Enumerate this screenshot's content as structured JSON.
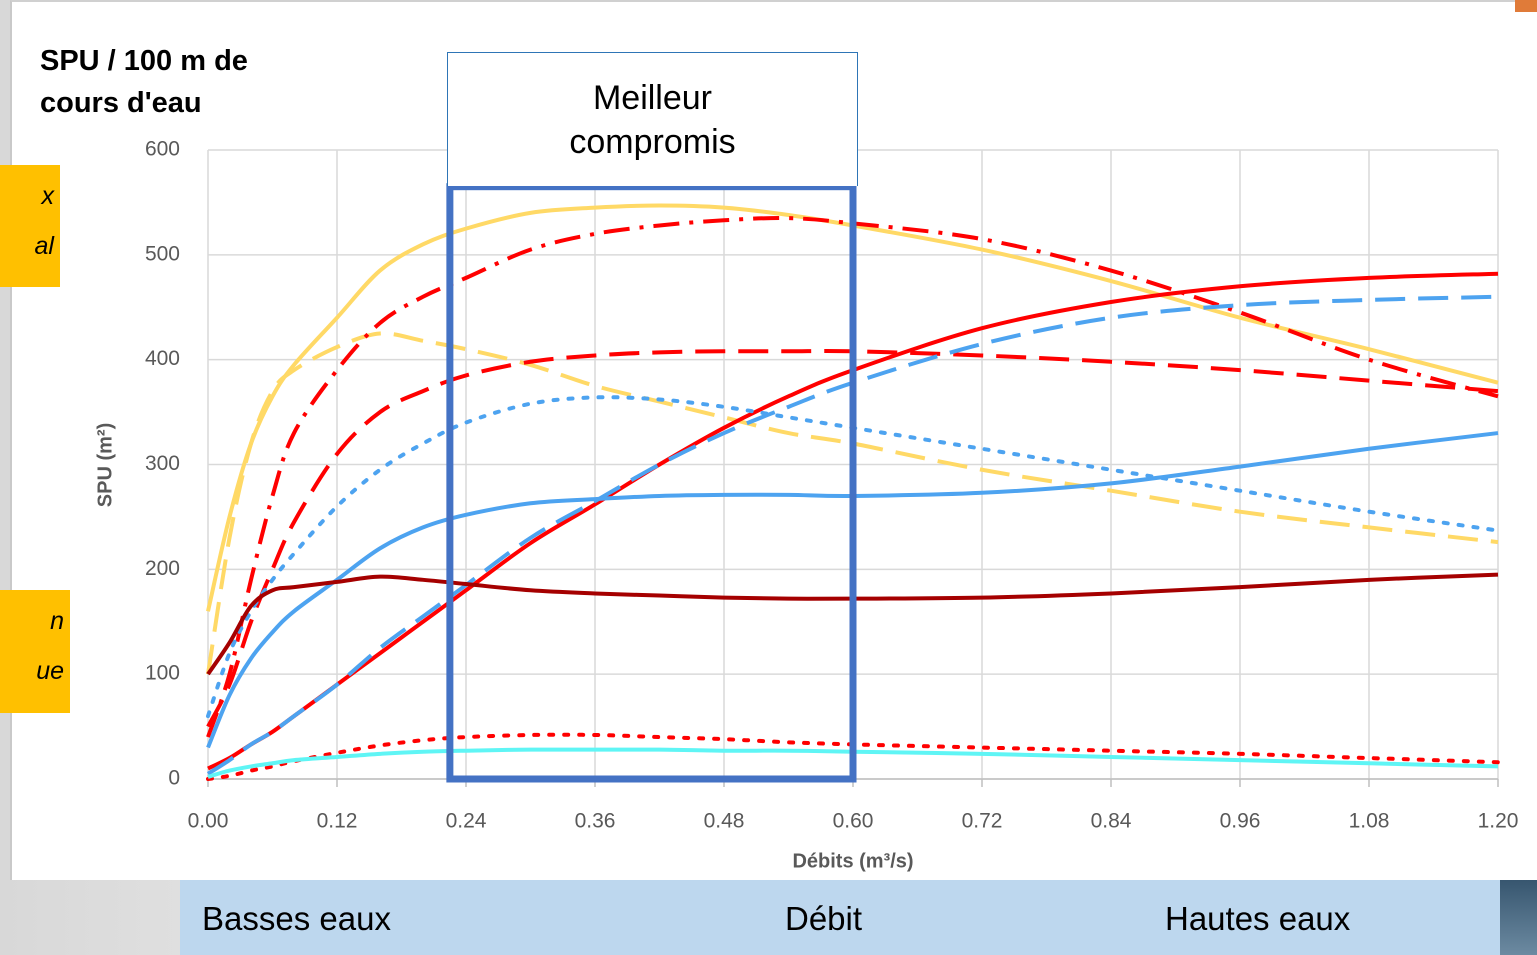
{
  "chart_data": {
    "type": "line",
    "title": "SPU / 100 m de cours d'eau",
    "x_label": "Débits (m³/s)",
    "y_label": "SPU (m²)",
    "x": [
      0,
      0.02,
      0.04,
      0.06,
      0.08,
      0.12,
      0.16,
      0.2,
      0.24,
      0.3,
      0.36,
      0.42,
      0.48,
      0.54,
      0.6,
      0.72,
      0.84,
      0.96,
      1.08,
      1.2
    ],
    "xlim": [
      0,
      1.2
    ],
    "xticks": [
      {
        "value": 0,
        "label": "0.00"
      },
      0.12,
      0.24,
      0.36,
      0.48,
      {
        "value": 0.6,
        "label": "0.60"
      },
      0.72,
      0.84,
      0.96,
      1.08,
      {
        "value": 1.2,
        "label": "1.20"
      }
    ],
    "ylim": [
      0,
      600
    ],
    "yticks": [
      0,
      100,
      200,
      300,
      400,
      500,
      600
    ],
    "grid": true,
    "series": [
      {
        "color": "#ffd966",
        "dash": "solid",
        "values": [
          160,
          250,
          320,
          365,
          395,
          440,
          485,
          510,
          525,
          540,
          545,
          547,
          545,
          538,
          528,
          505,
          475,
          440,
          410,
          378
        ]
      },
      {
        "color": "#ffd966",
        "dash": "dashed",
        "values": [
          100,
          230,
          320,
          370,
          390,
          412,
          425,
          418,
          410,
          395,
          375,
          360,
          345,
          330,
          320,
          295,
          275,
          255,
          240,
          226
        ]
      },
      {
        "color": "#ff0000",
        "dash": "dashdot",
        "values": [
          40,
          100,
          190,
          270,
          330,
          390,
          435,
          460,
          478,
          505,
          520,
          528,
          533,
          535,
          530,
          515,
          485,
          445,
          400,
          365
        ]
      },
      {
        "color": "#ff0000",
        "dash": "dashed",
        "values": [
          50,
          90,
          150,
          200,
          245,
          310,
          350,
          370,
          385,
          398,
          404,
          407,
          408,
          408,
          408,
          404,
          398,
          390,
          380,
          370
        ]
      },
      {
        "color": "#ff0000",
        "dash": "solid",
        "values": [
          10,
          20,
          33,
          45,
          60,
          90,
          120,
          150,
          180,
          225,
          262,
          300,
          335,
          365,
          390,
          430,
          455,
          470,
          478,
          482
        ]
      },
      {
        "color": "#4da3f0",
        "dash": "dashed",
        "values": [
          5,
          18,
          33,
          45,
          60,
          90,
          125,
          155,
          185,
          230,
          265,
          300,
          330,
          355,
          378,
          415,
          440,
          452,
          457,
          460
        ]
      },
      {
        "color": "#4da3f0",
        "dash": "dotted",
        "values": [
          60,
          120,
          160,
          190,
          215,
          260,
          295,
          320,
          340,
          358,
          364,
          362,
          355,
          345,
          335,
          315,
          295,
          275,
          255,
          237
        ]
      },
      {
        "color": "#4da3f0",
        "dash": "solid",
        "values": [
          30,
          80,
          115,
          140,
          160,
          190,
          220,
          240,
          252,
          263,
          267,
          270,
          271,
          271,
          270,
          273,
          282,
          298,
          315,
          330
        ]
      },
      {
        "color": "#a50000",
        "dash": "solid",
        "values": [
          100,
          130,
          165,
          180,
          183,
          188,
          193,
          190,
          186,
          180,
          177,
          175,
          173,
          172,
          172,
          173,
          177,
          183,
          190,
          195
        ]
      },
      {
        "color": "#ff0000",
        "dash": "dotted",
        "values": [
          0,
          3,
          8,
          12,
          17,
          25,
          32,
          37,
          40,
          42,
          42,
          40,
          38,
          35,
          33,
          30,
          27,
          24,
          20,
          16
        ]
      },
      {
        "color": "#5ff5f5",
        "dash": "solid",
        "values": [
          2,
          8,
          12,
          15,
          18,
          21,
          24,
          26,
          27,
          28,
          28,
          28,
          27,
          27,
          26,
          24,
          21,
          18,
          15,
          12
        ]
      }
    ],
    "highlight": {
      "label": "Meilleur compromis",
      "x": [
        0.225,
        0.6
      ],
      "y": [
        0,
        565
      ],
      "color": "#4472c4"
    }
  },
  "side_notes": [
    {
      "lines": [
        "x",
        "al"
      ]
    },
    {
      "lines": [
        "n",
        "ue"
      ]
    }
  ],
  "flow_bar": {
    "left": "Basses eaux",
    "center": "Débit",
    "right": "Hautes eaux"
  }
}
